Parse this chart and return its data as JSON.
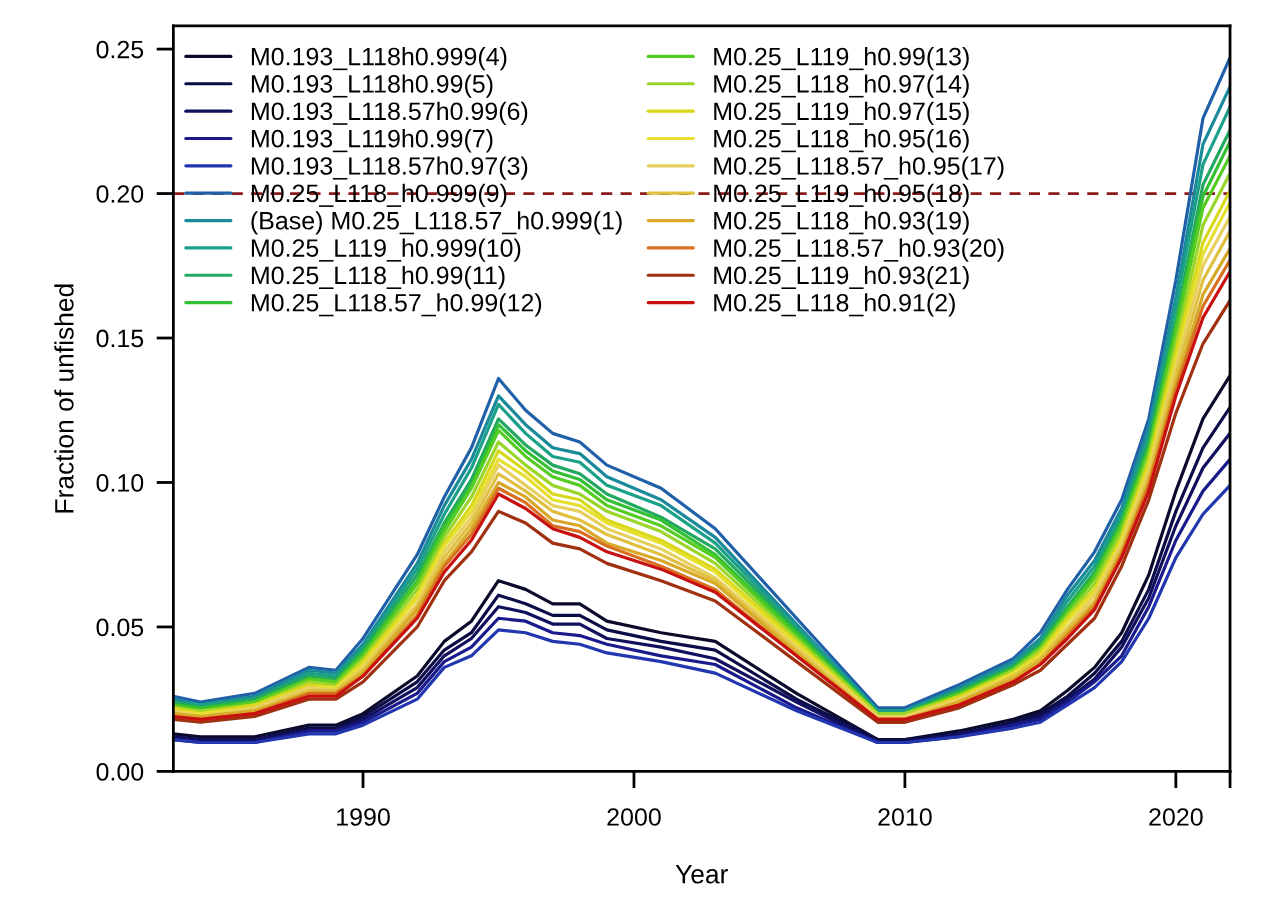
{
  "chart_data": {
    "type": "line",
    "xlabel": "Year",
    "ylabel": "Fraction of unfished",
    "x": [
      1983,
      1984,
      1986,
      1988,
      1989,
      1990,
      1992,
      1993,
      1994,
      1995,
      1996,
      1997,
      1998,
      1999,
      2001,
      2003,
      2006,
      2009,
      2010,
      2012,
      2014,
      2015,
      2016,
      2017,
      2018,
      2019,
      2020,
      2021,
      2022
    ],
    "xlim": [
      1983,
      2022
    ],
    "xticks": [
      1990,
      2000,
      2010,
      2020,
      {
        "value": 2022,
        "label": null
      }
    ],
    "ylim": [
      0,
      0.258
    ],
    "yticks": [
      {
        "value": 0,
        "label": "0.00"
      },
      {
        "value": 0.05,
        "label": "0.05"
      },
      {
        "value": 0.1,
        "label": "0.10"
      },
      {
        "value": 0.15,
        "label": "0.15"
      },
      {
        "value": 0.2,
        "label": "0.20"
      },
      {
        "value": 0.25,
        "label": "0.25"
      }
    ],
    "legend": "top left",
    "marker": "none",
    "line_style": "solid",
    "ref_lines": [
      {
        "axis": "y",
        "value": 0.2,
        "color": "#8b1a1a",
        "line_style": "dashed"
      }
    ],
    "series": [
      {
        "name": "M0.193_L118h0.999(4)",
        "color": "#0a0a2a",
        "values": [
          0.013,
          0.012,
          0.012,
          0.016,
          0.016,
          0.02,
          0.033,
          0.045,
          0.052,
          0.066,
          0.063,
          0.058,
          0.058,
          0.052,
          0.048,
          0.045,
          0.027,
          0.011,
          0.011,
          0.014,
          0.018,
          0.021,
          0.028,
          0.036,
          0.048,
          0.068,
          0.097,
          0.122,
          0.137
        ]
      },
      {
        "name": "M0.193_L118h0.99(5)",
        "color": "#0c0c48",
        "values": [
          0.012,
          0.011,
          0.011,
          0.015,
          0.015,
          0.019,
          0.031,
          0.042,
          0.048,
          0.061,
          0.058,
          0.054,
          0.054,
          0.049,
          0.045,
          0.042,
          0.025,
          0.011,
          0.011,
          0.013,
          0.017,
          0.02,
          0.026,
          0.034,
          0.045,
          0.063,
          0.09,
          0.112,
          0.126
        ]
      },
      {
        "name": "M0.193_L118.57h0.99(6)",
        "color": "#10105e",
        "values": [
          0.012,
          0.011,
          0.011,
          0.014,
          0.014,
          0.018,
          0.029,
          0.04,
          0.046,
          0.057,
          0.055,
          0.051,
          0.051,
          0.046,
          0.043,
          0.039,
          0.024,
          0.01,
          0.01,
          0.013,
          0.016,
          0.019,
          0.025,
          0.032,
          0.043,
          0.06,
          0.085,
          0.105,
          0.117
        ]
      },
      {
        "name": "M0.193_L119h0.99(7)",
        "color": "#1a1a8c",
        "values": [
          0.011,
          0.01,
          0.01,
          0.014,
          0.014,
          0.017,
          0.027,
          0.038,
          0.043,
          0.053,
          0.052,
          0.048,
          0.047,
          0.044,
          0.04,
          0.037,
          0.022,
          0.01,
          0.01,
          0.012,
          0.016,
          0.018,
          0.024,
          0.031,
          0.04,
          0.057,
          0.08,
          0.097,
          0.108
        ]
      },
      {
        "name": "M0.193_L118.57h0.97(3)",
        "color": "#2236b0",
        "values": [
          0.011,
          0.01,
          0.01,
          0.013,
          0.013,
          0.016,
          0.025,
          0.036,
          0.04,
          0.049,
          0.048,
          0.045,
          0.044,
          0.041,
          0.038,
          0.034,
          0.021,
          0.01,
          0.01,
          0.012,
          0.015,
          0.017,
          0.023,
          0.029,
          0.038,
          0.053,
          0.074,
          0.089,
          0.099
        ]
      },
      {
        "name": "M0.25_L118_h0.999(9)",
        "color": "#1f60a8",
        "values": [
          0.026,
          0.024,
          0.027,
          0.036,
          0.035,
          0.046,
          0.075,
          0.095,
          0.112,
          0.136,
          0.125,
          0.117,
          0.114,
          0.106,
          0.098,
          0.084,
          0.053,
          0.022,
          0.022,
          0.03,
          0.039,
          0.048,
          0.063,
          0.076,
          0.094,
          0.122,
          0.17,
          0.226,
          0.247
        ]
      },
      {
        "name": "(Base) M0.25_L118.57_h0.999(1)",
        "color": "#1a8a9a",
        "values": [
          0.025,
          0.023,
          0.026,
          0.035,
          0.034,
          0.044,
          0.072,
          0.092,
          0.108,
          0.13,
          0.12,
          0.112,
          0.11,
          0.102,
          0.094,
          0.081,
          0.051,
          0.021,
          0.021,
          0.029,
          0.038,
          0.046,
          0.061,
          0.073,
          0.091,
          0.119,
          0.164,
          0.217,
          0.237
        ]
      },
      {
        "name": "M0.25_L119_h0.999(10)",
        "color": "#1aa088",
        "values": [
          0.024,
          0.023,
          0.025,
          0.034,
          0.033,
          0.043,
          0.07,
          0.089,
          0.105,
          0.127,
          0.117,
          0.109,
          0.107,
          0.099,
          0.092,
          0.079,
          0.05,
          0.021,
          0.021,
          0.028,
          0.037,
          0.045,
          0.059,
          0.071,
          0.089,
          0.116,
          0.161,
          0.21,
          0.23
        ]
      },
      {
        "name": "M0.25_L118_h0.99(11)",
        "color": "#22a860",
        "values": [
          0.024,
          0.022,
          0.025,
          0.033,
          0.032,
          0.042,
          0.068,
          0.086,
          0.101,
          0.122,
          0.113,
          0.106,
          0.103,
          0.096,
          0.088,
          0.077,
          0.049,
          0.02,
          0.02,
          0.028,
          0.036,
          0.044,
          0.057,
          0.069,
          0.087,
          0.114,
          0.156,
          0.203,
          0.222
        ]
      },
      {
        "name": "M0.25_L118.57_h0.99(12)",
        "color": "#33c033",
        "values": [
          0.023,
          0.022,
          0.024,
          0.032,
          0.031,
          0.041,
          0.066,
          0.085,
          0.099,
          0.12,
          0.111,
          0.104,
          0.101,
          0.094,
          0.087,
          0.075,
          0.048,
          0.02,
          0.02,
          0.027,
          0.036,
          0.043,
          0.056,
          0.068,
          0.086,
          0.112,
          0.154,
          0.199,
          0.218
        ]
      },
      {
        "name": "M0.25_L119_h0.99(13)",
        "color": "#55cc22",
        "values": [
          0.023,
          0.021,
          0.024,
          0.032,
          0.031,
          0.04,
          0.065,
          0.083,
          0.098,
          0.118,
          0.109,
          0.102,
          0.099,
          0.092,
          0.085,
          0.074,
          0.047,
          0.02,
          0.02,
          0.027,
          0.035,
          0.043,
          0.055,
          0.067,
          0.085,
          0.111,
          0.152,
          0.195,
          0.213
        ]
      },
      {
        "name": "M0.25_L118_h0.97(14)",
        "color": "#9ad52a",
        "values": [
          0.022,
          0.021,
          0.023,
          0.031,
          0.03,
          0.039,
          0.063,
          0.081,
          0.095,
          0.114,
          0.106,
          0.099,
          0.096,
          0.09,
          0.083,
          0.072,
          0.046,
          0.02,
          0.02,
          0.026,
          0.035,
          0.042,
          0.054,
          0.065,
          0.083,
          0.109,
          0.148,
          0.189,
          0.207
        ]
      },
      {
        "name": "M0.25_L119_h0.97(15)",
        "color": "#d8d81a",
        "values": [
          0.022,
          0.02,
          0.023,
          0.03,
          0.029,
          0.038,
          0.061,
          0.079,
          0.092,
          0.111,
          0.104,
          0.096,
          0.094,
          0.087,
          0.08,
          0.07,
          0.045,
          0.019,
          0.019,
          0.026,
          0.034,
          0.041,
          0.053,
          0.063,
          0.081,
          0.107,
          0.145,
          0.183,
          0.201
        ]
      },
      {
        "name": "M0.25_L118_h0.95(16)",
        "color": "#e8e030",
        "values": [
          0.021,
          0.02,
          0.022,
          0.029,
          0.029,
          0.037,
          0.06,
          0.078,
          0.09,
          0.108,
          0.102,
          0.094,
          0.092,
          0.086,
          0.079,
          0.069,
          0.044,
          0.019,
          0.019,
          0.025,
          0.034,
          0.04,
          0.052,
          0.062,
          0.08,
          0.105,
          0.142,
          0.179,
          0.197
        ]
      },
      {
        "name": "M0.25_L118.57_h0.95(17)",
        "color": "#e8d060",
        "values": [
          0.021,
          0.019,
          0.022,
          0.029,
          0.028,
          0.036,
          0.058,
          0.076,
          0.088,
          0.106,
          0.099,
          0.092,
          0.09,
          0.084,
          0.077,
          0.067,
          0.043,
          0.019,
          0.019,
          0.025,
          0.033,
          0.039,
          0.05,
          0.061,
          0.079,
          0.104,
          0.14,
          0.175,
          0.192
        ]
      },
      {
        "name": "M0.25_L119_h0.95(18)",
        "color": "#e0c040",
        "values": [
          0.02,
          0.019,
          0.021,
          0.028,
          0.028,
          0.035,
          0.057,
          0.074,
          0.086,
          0.103,
          0.097,
          0.09,
          0.087,
          0.082,
          0.075,
          0.066,
          0.042,
          0.018,
          0.018,
          0.024,
          0.033,
          0.039,
          0.049,
          0.059,
          0.077,
          0.102,
          0.137,
          0.17,
          0.187
        ]
      },
      {
        "name": "M0.25_L118_h0.93(19)",
        "color": "#d8a828",
        "values": [
          0.02,
          0.019,
          0.021,
          0.027,
          0.027,
          0.034,
          0.056,
          0.072,
          0.084,
          0.1,
          0.095,
          0.087,
          0.085,
          0.079,
          0.073,
          0.065,
          0.041,
          0.018,
          0.018,
          0.024,
          0.032,
          0.038,
          0.048,
          0.058,
          0.076,
          0.1,
          0.134,
          0.165,
          0.181
        ]
      },
      {
        "name": "M0.25_L118.57_h0.93(20)",
        "color": "#d87020",
        "values": [
          0.019,
          0.018,
          0.02,
          0.027,
          0.027,
          0.033,
          0.054,
          0.071,
          0.082,
          0.098,
          0.093,
          0.085,
          0.083,
          0.078,
          0.071,
          0.063,
          0.04,
          0.018,
          0.018,
          0.023,
          0.031,
          0.037,
          0.047,
          0.057,
          0.075,
          0.099,
          0.132,
          0.161,
          0.177
        ]
      },
      {
        "name": "M0.25_L119_h0.93(21)",
        "color": "#a03010",
        "values": [
          0.018,
          0.017,
          0.019,
          0.025,
          0.025,
          0.031,
          0.05,
          0.066,
          0.076,
          0.09,
          0.086,
          0.079,
          0.077,
          0.072,
          0.066,
          0.059,
          0.038,
          0.017,
          0.017,
          0.022,
          0.03,
          0.035,
          0.044,
          0.053,
          0.071,
          0.094,
          0.124,
          0.148,
          0.163
        ]
      },
      {
        "name": "M0.25_L118_h0.91(2)",
        "color": "#c81010",
        "values": [
          0.019,
          0.018,
          0.02,
          0.026,
          0.026,
          0.033,
          0.053,
          0.069,
          0.08,
          0.096,
          0.091,
          0.084,
          0.081,
          0.076,
          0.07,
          0.062,
          0.04,
          0.018,
          0.018,
          0.023,
          0.031,
          0.037,
          0.046,
          0.056,
          0.074,
          0.097,
          0.13,
          0.157,
          0.173
        ]
      }
    ]
  }
}
